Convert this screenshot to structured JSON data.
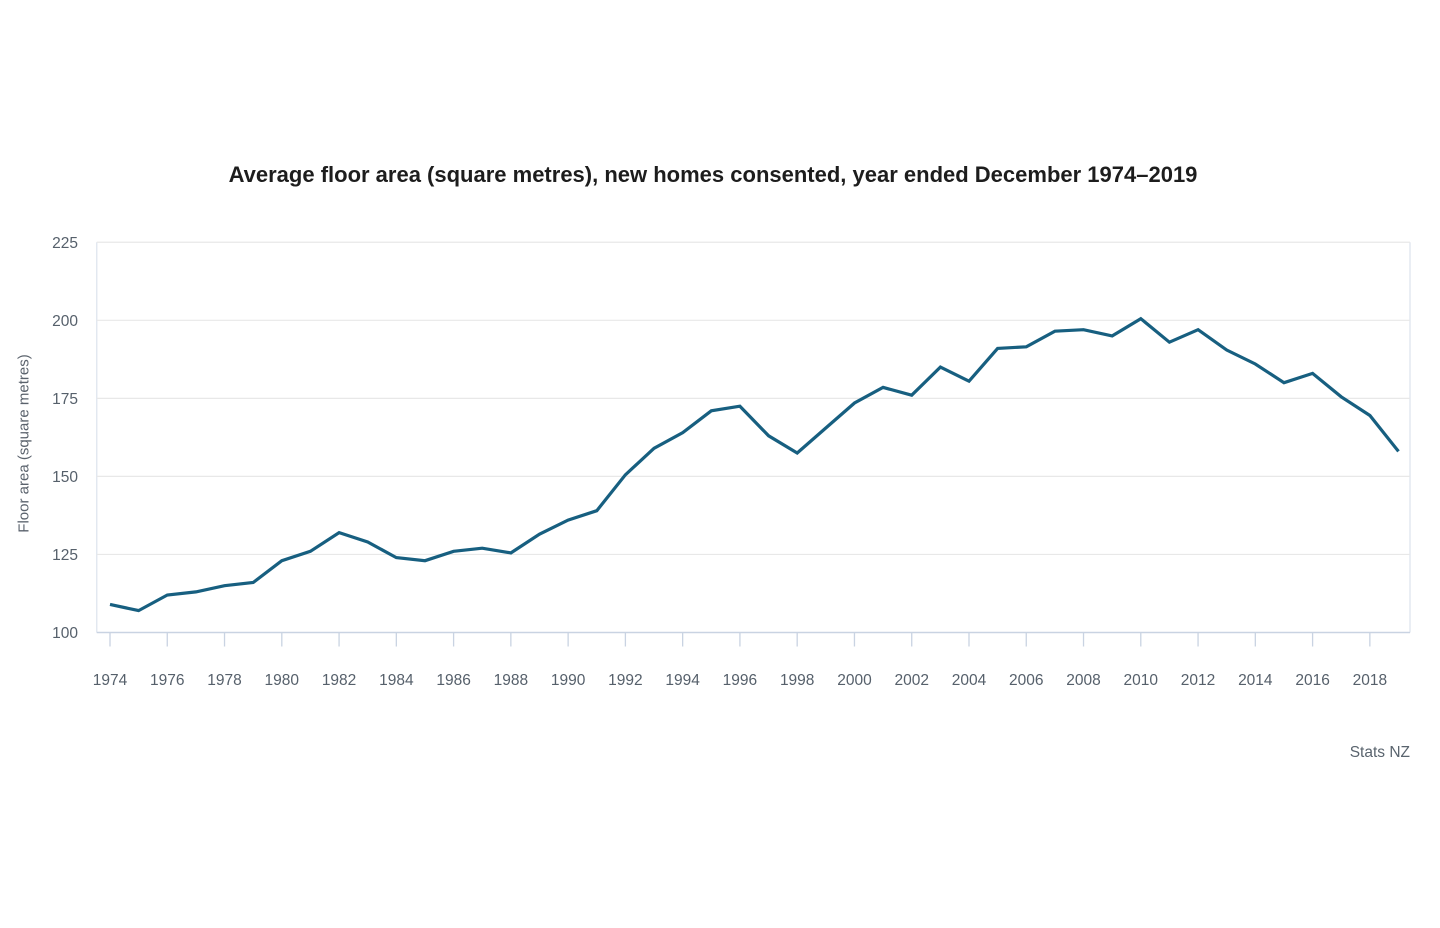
{
  "chart": {
    "title": "Average floor area (square metres), new homes consented, year ended December 1974–2019",
    "y_axis_title": "Floor area (square metres)",
    "source": "Stats NZ"
  },
  "colors": {
    "line": "#175f80",
    "title_text": "#1d1d1d",
    "axis_label_text": "#56606b",
    "gridline": "#e8e8e8",
    "plot_border": "#dfe5ef",
    "axis_line": "#c9d3e2",
    "tick_mark": "#c9d3e2",
    "background": "#ffffff"
  },
  "chart_data": {
    "type": "line",
    "title": "Average floor area (square metres), new homes consented, year ended December 1974–2019",
    "xlabel": "",
    "ylabel": "Floor area (square metres)",
    "series_name": "Average floor area of new homes consented",
    "x": [
      1974,
      1975,
      1976,
      1977,
      1978,
      1979,
      1980,
      1981,
      1982,
      1983,
      1984,
      1985,
      1986,
      1987,
      1988,
      1989,
      1990,
      1991,
      1992,
      1993,
      1994,
      1995,
      1996,
      1997,
      1998,
      1999,
      2000,
      2001,
      2002,
      2003,
      2004,
      2005,
      2006,
      2007,
      2008,
      2009,
      2010,
      2011,
      2012,
      2013,
      2014,
      2015,
      2016,
      2017,
      2018,
      2019
    ],
    "values": [
      109,
      107,
      112,
      113,
      115,
      116,
      123,
      126,
      132,
      129,
      124,
      123,
      126,
      127,
      125.5,
      131.5,
      136,
      139,
      150.5,
      159,
      164,
      171,
      172.5,
      163,
      157.5,
      165.5,
      173.5,
      178.5,
      176,
      185,
      180.5,
      191,
      191.5,
      196.5,
      197,
      195,
      200.5,
      193,
      197,
      190.5,
      186,
      180,
      183,
      175.5,
      169.5,
      158
    ],
    "ylim": [
      100,
      225
    ],
    "yticks": [
      100,
      125,
      150,
      175,
      200,
      225
    ],
    "xtick_labels": [
      "1974",
      "1976",
      "1978",
      "1980",
      "1982",
      "1984",
      "1986",
      "1988",
      "1990",
      "1992",
      "1994",
      "1996",
      "1998",
      "2000",
      "2002",
      "2004",
      "2006",
      "2008",
      "2010",
      "2012",
      "2014",
      "2016",
      "2018"
    ],
    "grid": "horizontal",
    "legend_position": "none",
    "annotations": [],
    "source": "Stats NZ"
  }
}
